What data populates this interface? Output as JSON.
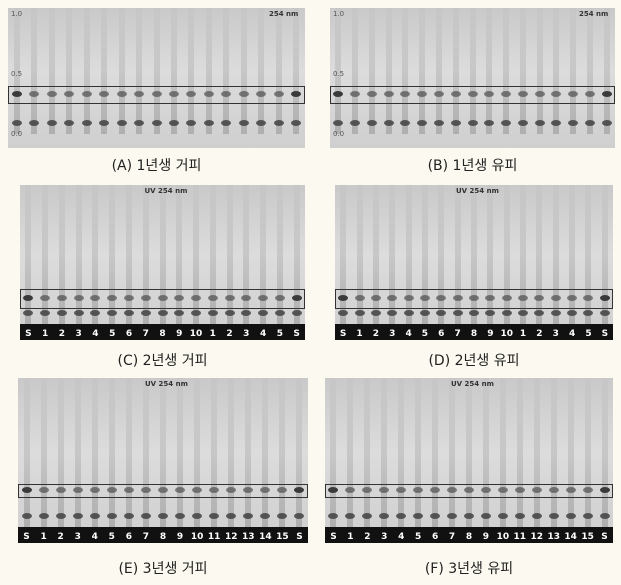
{
  "panels": [
    {
      "caption": "(A) 1년생 거피",
      "uv": "254 nm",
      "rf": [
        "1.0",
        "0.5",
        "0.0"
      ]
    },
    {
      "caption": "(B) 1년생 유피",
      "uv": "254 nm",
      "rf": [
        "1.0",
        "0.5",
        "0.0"
      ]
    },
    {
      "caption": "(C) 2년생 거피",
      "uv": "UV 254 nm",
      "lanes": [
        "S",
        "1",
        "2",
        "3",
        "4",
        "5",
        "6",
        "7",
        "8",
        "9",
        "10",
        "1",
        "2",
        "3",
        "4",
        "5",
        "S"
      ]
    },
    {
      "caption": "(D) 2년생 유피",
      "uv": "UV 254 nm",
      "lanes": [
        "S",
        "1",
        "2",
        "3",
        "4",
        "5",
        "6",
        "7",
        "8",
        "9",
        "10",
        "1",
        "2",
        "3",
        "4",
        "5",
        "S"
      ]
    },
    {
      "caption": "(E) 3년생 거피",
      "uv": "UV 254 nm",
      "lanes": [
        "S",
        "1",
        "2",
        "3",
        "4",
        "5",
        "6",
        "7",
        "8",
        "9",
        "10",
        "11",
        "12",
        "13",
        "14",
        "15",
        "S"
      ]
    },
    {
      "caption": "(F) 3년생 유피",
      "uv": "UV 254 nm",
      "lanes": [
        "S",
        "1",
        "2",
        "3",
        "4",
        "5",
        "6",
        "7",
        "8",
        "9",
        "10",
        "11",
        "12",
        "13",
        "14",
        "15",
        "S"
      ]
    }
  ]
}
